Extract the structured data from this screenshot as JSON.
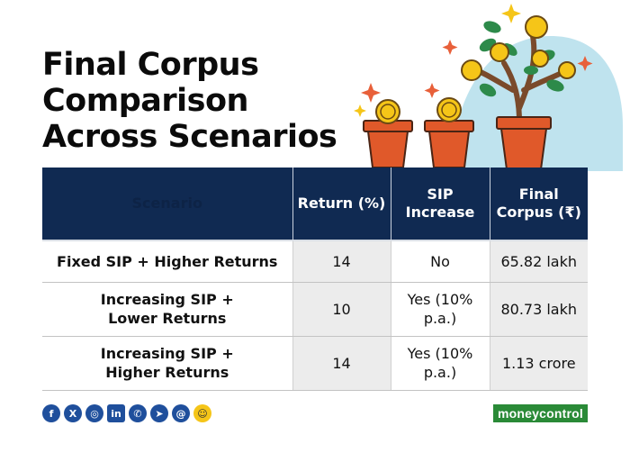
{
  "title": {
    "line1": "Final Corpus",
    "line2": "Comparison",
    "line3": "Across Scenarios"
  },
  "table": {
    "headers": {
      "scenario": "Scenario",
      "return": "Return (%)",
      "sip_increase": "SIP Increase",
      "final_corpus": "Final Corpus (₹)"
    },
    "rows": [
      {
        "scenario": "Fixed SIP + Higher Returns",
        "return": "14",
        "sip_increase": "No",
        "final_corpus": "65.82 lakh"
      },
      {
        "scenario": "Increasing SIP + Lower Returns",
        "return": "10",
        "sip_increase": "Yes (10% p.a.)",
        "final_corpus": "80.73 lakh"
      },
      {
        "scenario": "Increasing SIP + Higher Returns",
        "return": "14",
        "sip_increase": "Yes (10% p.a.)",
        "final_corpus": "1.13 crore"
      }
    ]
  },
  "social_icons": [
    "facebook-icon",
    "x-icon",
    "instagram-icon",
    "linkedin-icon",
    "whatsapp-icon",
    "telegram-icon",
    "threads-icon",
    "snapchat-icon"
  ],
  "brand": {
    "part1": "money",
    "part2": "control"
  },
  "colors": {
    "header_bg": "#102a52",
    "brand_green": "#2a8a37",
    "coin": "#f5c518",
    "pot": "#e0592a",
    "plant_bg": "#bfe3ee"
  }
}
